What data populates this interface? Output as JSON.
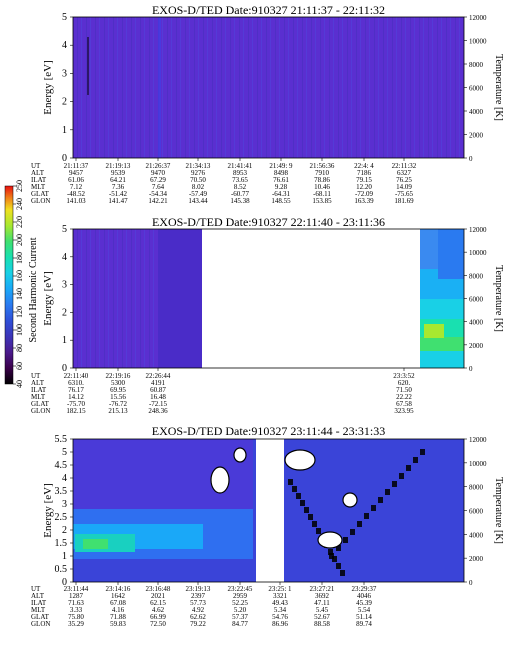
{
  "colorbar": {
    "label": "Second Harmonic Current",
    "ticks": [
      "40",
      "60",
      "80",
      "100",
      "120",
      "140",
      "160",
      "180",
      "200",
      "220",
      "240",
      "250"
    ],
    "colors": [
      "#000000",
      "#3a004a",
      "#4b1a8c",
      "#3c35b8",
      "#2f4fd8",
      "#2a7af0",
      "#1aa8f8",
      "#19d0e6",
      "#19e0b0",
      "#40e070",
      "#a8e830",
      "#f0e020",
      "#f08018",
      "#e81010"
    ]
  },
  "chart_data": [
    {
      "type": "heatmap",
      "title": "EXOS-D/TED   Date:910327   21:11:37 - 22:11:32",
      "ylabel": "Energy [eV]",
      "ylabel_right": "Temperature [K]",
      "ylim": [
        0,
        5
      ],
      "ylim_right": [
        0,
        12000
      ],
      "yticks": [
        "0",
        "1",
        "2",
        "3",
        "4",
        "5"
      ],
      "yticks_right": [
        "0",
        "2000",
        "4000",
        "6000",
        "8000",
        "10000",
        "12000"
      ],
      "row_labels": [
        "UT",
        "ALT",
        "ILAT",
        "MLT",
        "GLAT",
        "GLON"
      ],
      "columns": [
        [
          "21:11:37",
          "9457",
          "61.06",
          "7.12",
          "-48.52",
          "141.03"
        ],
        [
          "21:19:13",
          "9539",
          "64.21",
          "7.36",
          "-51.42",
          "141.47"
        ],
        [
          "21:26:37",
          "9470",
          "67.29",
          "7.64",
          "-54.34",
          "142.21"
        ],
        [
          "21:34:13",
          "9276",
          "70.50",
          "8.02",
          "-57.49",
          "143.44"
        ],
        [
          "21:41:41",
          "8953",
          "73.65",
          "8.52",
          "-60.77",
          "145.38"
        ],
        [
          "21:49: 9",
          "8498",
          "76.61",
          "9.28",
          "-64.31",
          "148.55"
        ],
        [
          "21:56:36",
          "7910",
          "78.86",
          "10.46",
          "-68.11",
          "153.85"
        ],
        [
          "22:4: 4",
          "7186",
          "79.15",
          "12.20",
          "-72.09",
          "163.39"
        ],
        [
          "22:11:32",
          "6327",
          "76.25",
          "14.09",
          "-75.65",
          "181.69"
        ]
      ],
      "fill": "uniform low intensity (purple) over the whole time range"
    },
    {
      "type": "heatmap",
      "title": "EXOS-D/TED   Date:910327   22:11:40 - 23:11:36",
      "ylabel": "Energy [eV]",
      "ylabel_right": "Temperature [K]",
      "ylim": [
        0,
        5
      ],
      "ylim_right": [
        0,
        12000
      ],
      "yticks": [
        "0",
        "1",
        "2",
        "3",
        "4",
        "5"
      ],
      "yticks_right": [
        "0",
        "2000",
        "4000",
        "6000",
        "8000",
        "10000",
        "12000"
      ],
      "row_labels": [
        "UT",
        "ALT",
        "ILAT",
        "MLT",
        "GLAT",
        "GLON"
      ],
      "columns": [
        [
          "22:11:40",
          "6310.",
          "76.17",
          "14.12",
          "-75.70",
          "182.15"
        ],
        [
          "22:19:16",
          "5300",
          "69.95",
          "15.56",
          "-76.72",
          "215.13"
        ],
        [
          "22:26:44",
          "4191",
          "60.87",
          "16.48",
          "-72.15",
          "248.36"
        ],
        [
          "23:3:52",
          "620.",
          "71.50",
          "22.22",
          "67.58",
          "323.95"
        ]
      ],
      "fill": "low intensity data 22:11:40-22:30, data gap until ~23:03, enhanced intensity (green-cyan) at low energy near the end"
    },
    {
      "type": "heatmap",
      "title": "EXOS-D/TED   Date:910327   23:11:44 - 23:31:33",
      "ylabel": "Energy [eV]",
      "ylabel_right": "Temperature [K]",
      "ylim": [
        0,
        5.5
      ],
      "ylim_right": [
        0,
        12000
      ],
      "yticks": [
        "0",
        "0.5",
        "1",
        "1.5",
        "2",
        "2.5",
        "3",
        "3.5",
        "4",
        "4.5",
        "5",
        "5.5"
      ],
      "yticks_right": [
        "0",
        "2000",
        "4000",
        "6000",
        "8000",
        "10000",
        "12000"
      ],
      "row_labels": [
        "UT",
        "ALT",
        "ILAT",
        "MLT",
        "GLAT",
        "GLON"
      ],
      "columns": [
        [
          "23:11:44",
          "1287",
          "71.63",
          "3.33",
          "75.80",
          "35.29"
        ],
        [
          "23:14:16",
          "1642",
          "67.08",
          "4.16",
          "71.88",
          "59.83"
        ],
        [
          "23:16:48",
          "2021",
          "62.15",
          "4.62",
          "66.99",
          "72.50"
        ],
        [
          "23:19:13",
          "2397",
          "57.73",
          "4.92",
          "62.62",
          "79.22"
        ],
        [
          "23:22:45",
          "2959",
          "52.25",
          "5.20",
          "57.37",
          "84.77"
        ],
        [
          "23:25: 1",
          "3321",
          "49.43",
          "5.34",
          "54.76",
          "86.96"
        ],
        [
          "23:27:21",
          "3692",
          "47.11",
          "5.45",
          "52.67",
          "88.58"
        ],
        [
          "23:29:37",
          "4046",
          "45.39",
          "5.54",
          "51.14",
          "89.74"
        ]
      ],
      "fill": "enhanced cyan/green band at 1-2 eV early, data gap near 23:21, dark diagonal structures after the gap"
    }
  ]
}
